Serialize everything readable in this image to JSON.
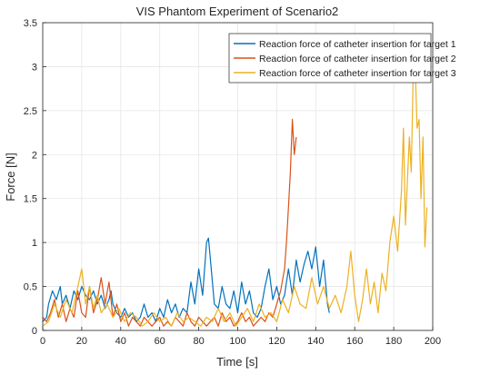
{
  "chart_data": {
    "type": "line",
    "title": "VIS Phantom Experiment of Scenario2",
    "xlabel": "Time [s]",
    "ylabel": "Force [N]",
    "xlim": [
      0,
      200
    ],
    "ylim": [
      0,
      3.5
    ],
    "xticks": [
      "0",
      "20",
      "40",
      "60",
      "80",
      "100",
      "120",
      "140",
      "160",
      "180",
      "200"
    ],
    "yticks": [
      "0",
      "0.5",
      "1",
      "1.5",
      "2",
      "2.5",
      "3",
      "3.5"
    ],
    "grid": true,
    "legend_position": "top-right",
    "series": [
      {
        "name": "Reaction force of catheter insertion for target 1",
        "color": "#0072BD",
        "x": [
          0,
          2,
          3,
          5,
          7,
          9,
          10,
          12,
          14,
          16,
          18,
          20,
          22,
          24,
          26,
          28,
          30,
          32,
          34,
          35,
          36,
          38,
          40,
          42,
          44,
          46,
          48,
          50,
          52,
          54,
          56,
          58,
          60,
          62,
          64,
          66,
          68,
          70,
          72,
          74,
          76,
          78,
          80,
          82,
          84,
          85,
          86,
          88,
          90,
          92,
          94,
          96,
          98,
          100,
          102,
          104,
          106,
          108,
          110,
          112,
          114,
          116,
          118,
          120,
          122,
          124,
          126,
          128,
          130,
          132,
          134,
          136,
          138,
          140,
          142,
          144,
          146,
          147
        ],
        "y": [
          0.1,
          0.15,
          0.3,
          0.45,
          0.35,
          0.5,
          0.3,
          0.4,
          0.25,
          0.45,
          0.35,
          0.5,
          0.4,
          0.35,
          0.45,
          0.3,
          0.4,
          0.25,
          0.35,
          0.45,
          0.3,
          0.2,
          0.15,
          0.25,
          0.15,
          0.2,
          0.1,
          0.15,
          0.3,
          0.15,
          0.2,
          0.1,
          0.25,
          0.15,
          0.35,
          0.2,
          0.3,
          0.15,
          0.25,
          0.2,
          0.55,
          0.3,
          0.7,
          0.4,
          1.0,
          1.05,
          0.8,
          0.3,
          0.25,
          0.5,
          0.3,
          0.25,
          0.45,
          0.2,
          0.55,
          0.3,
          0.45,
          0.2,
          0.15,
          0.25,
          0.5,
          0.7,
          0.35,
          0.5,
          0.3,
          0.4,
          0.7,
          0.4,
          0.8,
          0.55,
          0.75,
          0.9,
          0.7,
          0.95,
          0.5,
          0.8,
          0.3,
          0.2
        ]
      },
      {
        "name": "Reaction force of catheter insertion for target 2",
        "color": "#D95319",
        "x": [
          0,
          2,
          4,
          6,
          8,
          10,
          12,
          14,
          16,
          18,
          20,
          22,
          24,
          26,
          28,
          30,
          32,
          34,
          36,
          38,
          40,
          42,
          44,
          46,
          48,
          50,
          52,
          54,
          56,
          58,
          60,
          62,
          64,
          66,
          68,
          70,
          72,
          74,
          76,
          78,
          80,
          82,
          84,
          86,
          88,
          90,
          92,
          94,
          96,
          98,
          100,
          102,
          104,
          106,
          108,
          110,
          112,
          114,
          116,
          118,
          120,
          122,
          124,
          125,
          126,
          127,
          128,
          129,
          130
        ],
        "y": [
          0.15,
          0.1,
          0.2,
          0.35,
          0.15,
          0.3,
          0.1,
          0.25,
          0.15,
          0.45,
          0.2,
          0.15,
          0.5,
          0.2,
          0.35,
          0.6,
          0.3,
          0.55,
          0.15,
          0.3,
          0.1,
          0.2,
          0.05,
          0.15,
          0.1,
          0.05,
          0.15,
          0.1,
          0.05,
          0.1,
          0.15,
          0.05,
          0.1,
          0.05,
          0.15,
          0.1,
          0.05,
          0.2,
          0.1,
          0.05,
          0.15,
          0.1,
          0.05,
          0.1,
          0.15,
          0.05,
          0.2,
          0.1,
          0.15,
          0.05,
          0.1,
          0.2,
          0.1,
          0.15,
          0.05,
          0.1,
          0.15,
          0.1,
          0.2,
          0.15,
          0.3,
          0.45,
          0.7,
          1.0,
          1.4,
          1.8,
          2.4,
          2.0,
          2.2
        ]
      },
      {
        "name": "Reaction force of catheter insertion for target 3",
        "color": "#EDB120",
        "x": [
          0,
          3,
          6,
          9,
          12,
          15,
          18,
          20,
          22,
          24,
          26,
          28,
          30,
          33,
          36,
          39,
          42,
          45,
          48,
          51,
          54,
          57,
          60,
          63,
          66,
          69,
          72,
          75,
          78,
          81,
          84,
          87,
          90,
          93,
          96,
          99,
          102,
          105,
          108,
          111,
          114,
          117,
          120,
          123,
          126,
          129,
          132,
          135,
          138,
          141,
          144,
          147,
          150,
          153,
          156,
          158,
          160,
          162,
          164,
          166,
          168,
          170,
          172,
          174,
          176,
          178,
          180,
          182,
          184,
          185,
          186,
          188,
          189,
          190,
          191,
          192,
          193,
          194,
          195,
          196,
          197
        ],
        "y": [
          0.05,
          0.1,
          0.3,
          0.15,
          0.35,
          0.2,
          0.5,
          0.7,
          0.3,
          0.5,
          0.25,
          0.4,
          0.2,
          0.3,
          0.15,
          0.25,
          0.1,
          0.2,
          0.15,
          0.05,
          0.1,
          0.2,
          0.1,
          0.15,
          0.05,
          0.2,
          0.1,
          0.15,
          0.1,
          0.05,
          0.15,
          0.1,
          0.25,
          0.1,
          0.2,
          0.05,
          0.15,
          0.25,
          0.1,
          0.3,
          0.15,
          0.2,
          0.1,
          0.35,
          0.2,
          0.5,
          0.3,
          0.25,
          0.6,
          0.3,
          0.5,
          0.25,
          0.4,
          0.2,
          0.5,
          0.9,
          0.4,
          0.1,
          0.35,
          0.7,
          0.3,
          0.55,
          0.2,
          0.65,
          0.45,
          1.0,
          1.3,
          0.9,
          1.6,
          2.3,
          1.2,
          2.2,
          1.8,
          2.9,
          3.0,
          2.3,
          2.4,
          1.5,
          2.2,
          0.95,
          1.4
        ]
      }
    ]
  }
}
